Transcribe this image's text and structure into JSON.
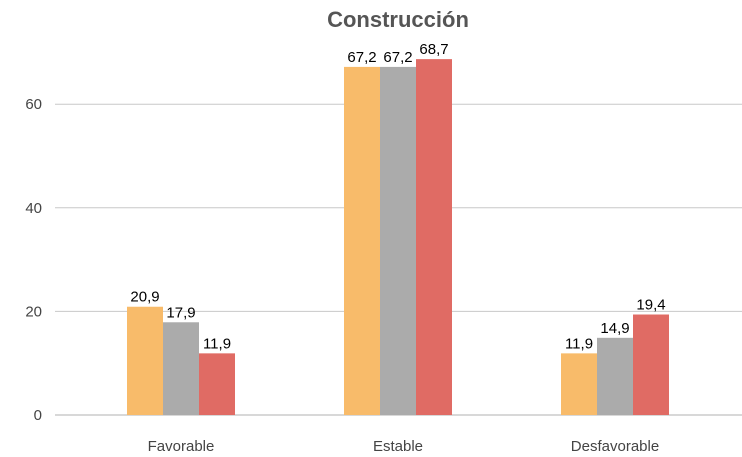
{
  "chart_data": {
    "type": "bar",
    "title": "Construcción",
    "categories": [
      "Favorable",
      "Estable",
      "Desfavorable"
    ],
    "series": [
      {
        "color": "#F8BB6A",
        "values": [
          20.9,
          67.2,
          11.9
        ],
        "labels": [
          "20,9",
          "67,2",
          "11,9"
        ]
      },
      {
        "color": "#ABABAB",
        "values": [
          17.9,
          67.2,
          14.9
        ],
        "labels": [
          "17,9",
          "67,2",
          "14,9"
        ]
      },
      {
        "color": "#E06B64",
        "values": [
          11.9,
          68.7,
          19.4
        ],
        "labels": [
          "11,9",
          "68,7",
          "19,4"
        ]
      }
    ],
    "yticks": [
      0,
      20,
      40,
      60
    ],
    "ytick_labels": [
      "0",
      "20",
      "40",
      "60"
    ],
    "ylim": [
      0,
      72
    ],
    "grid": true,
    "legend": "none",
    "xlabel": "",
    "ylabel": ""
  }
}
